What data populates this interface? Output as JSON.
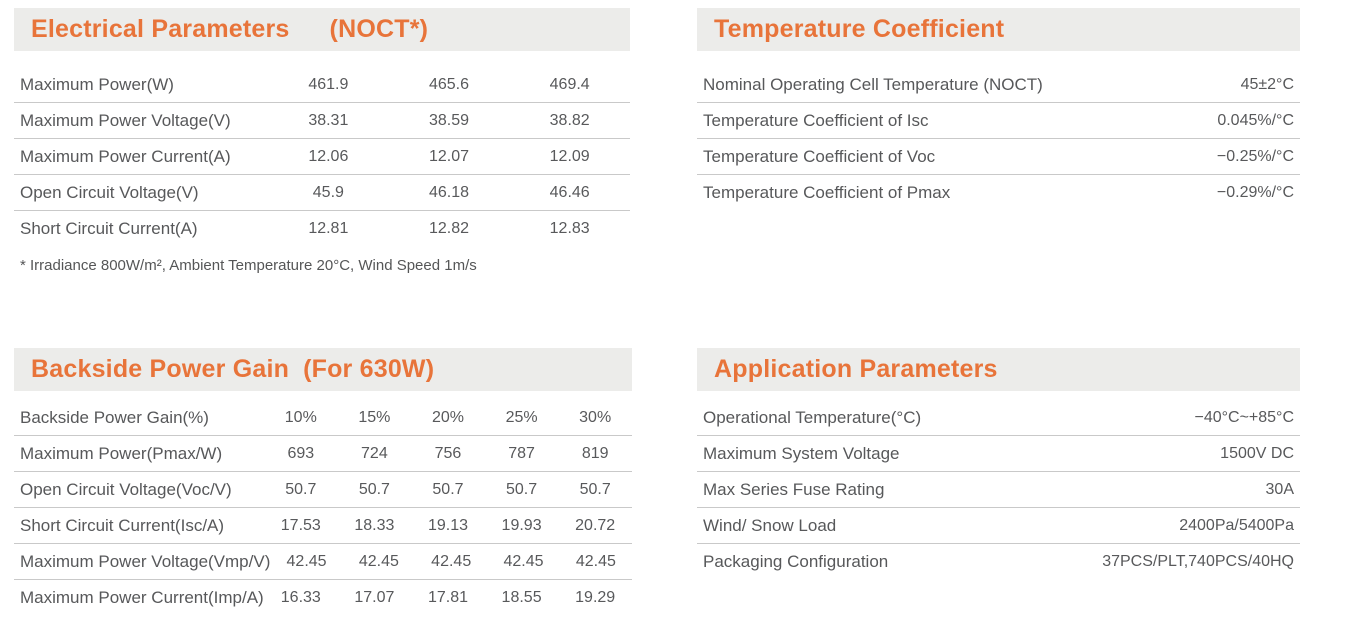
{
  "theme": {
    "accent": "#E8743A",
    "header_bg": "#ECECEA",
    "text": "#58595B",
    "divider": "#C9C9C9"
  },
  "panels": {
    "electrical": {
      "title": "Electrical Parameters",
      "title_note": "(NOCT*)",
      "rows": [
        {
          "label": "Maximum Power(W)",
          "values": [
            "461.9",
            "465.6",
            "469.4"
          ]
        },
        {
          "label": "Maximum Power Voltage(V)",
          "values": [
            "38.31",
            "38.59",
            "38.82"
          ]
        },
        {
          "label": "Maximum Power Current(A)",
          "values": [
            "12.06",
            "12.07",
            "12.09"
          ]
        },
        {
          "label": "Open Circuit Voltage(V)",
          "values": [
            "45.9",
            "46.18",
            "46.46"
          ]
        },
        {
          "label": "Short Circuit Current(A)",
          "values": [
            "12.81",
            "12.82",
            "12.83"
          ]
        }
      ],
      "footnote": "* Irradiance 800W/m², Ambient Temperature 20°C, Wind Speed 1m/s"
    },
    "temperature": {
      "title": "Temperature Coefficient",
      "rows": [
        {
          "label": "Nominal Operating Cell Temperature (NOCT)",
          "value": "45±2°C"
        },
        {
          "label": "Temperature Coefficient of Isc",
          "value": "0.045%/°C"
        },
        {
          "label": "Temperature Coefficient of Voc",
          "value": "−0.25%/°C"
        },
        {
          "label": "Temperature Coefficient of Pmax",
          "value": "−0.29%/°C"
        }
      ]
    },
    "backside": {
      "title": "Backside Power Gain",
      "title_note": "(For 630W)",
      "rows": [
        {
          "label": "Backside Power Gain(%)",
          "values": [
            "10%",
            "15%",
            "20%",
            "25%",
            "30%"
          ]
        },
        {
          "label": "Maximum Power(Pmax/W)",
          "values": [
            "693",
            "724",
            "756",
            "787",
            "819"
          ]
        },
        {
          "label": "Open Circuit Voltage(Voc/V)",
          "values": [
            "50.7",
            "50.7",
            "50.7",
            "50.7",
            "50.7"
          ]
        },
        {
          "label": "Short Circuit Current(Isc/A)",
          "values": [
            "17.53",
            "18.33",
            "19.13",
            "19.93",
            "20.72"
          ]
        },
        {
          "label": "Maximum Power Voltage(Vmp/V)",
          "values": [
            "42.45",
            "42.45",
            "42.45",
            "42.45",
            "42.45"
          ]
        },
        {
          "label": "Maximum Power Current(Imp/A)",
          "values": [
            "16.33",
            "17.07",
            "17.81",
            "18.55",
            "19.29"
          ]
        }
      ]
    },
    "application": {
      "title": "Application Parameters",
      "rows": [
        {
          "label": "Operational Temperature(°C)",
          "value": "−40°C~+85°C"
        },
        {
          "label": "Maximum System Voltage",
          "value": "1500V DC"
        },
        {
          "label": "Max Series Fuse Rating",
          "value": "30A"
        },
        {
          "label": "Wind/ Snow Load",
          "value": "2400Pa/5400Pa"
        },
        {
          "label": "Packaging Configuration",
          "value": "37PCS/PLT,740PCS/40HQ"
        }
      ]
    }
  }
}
